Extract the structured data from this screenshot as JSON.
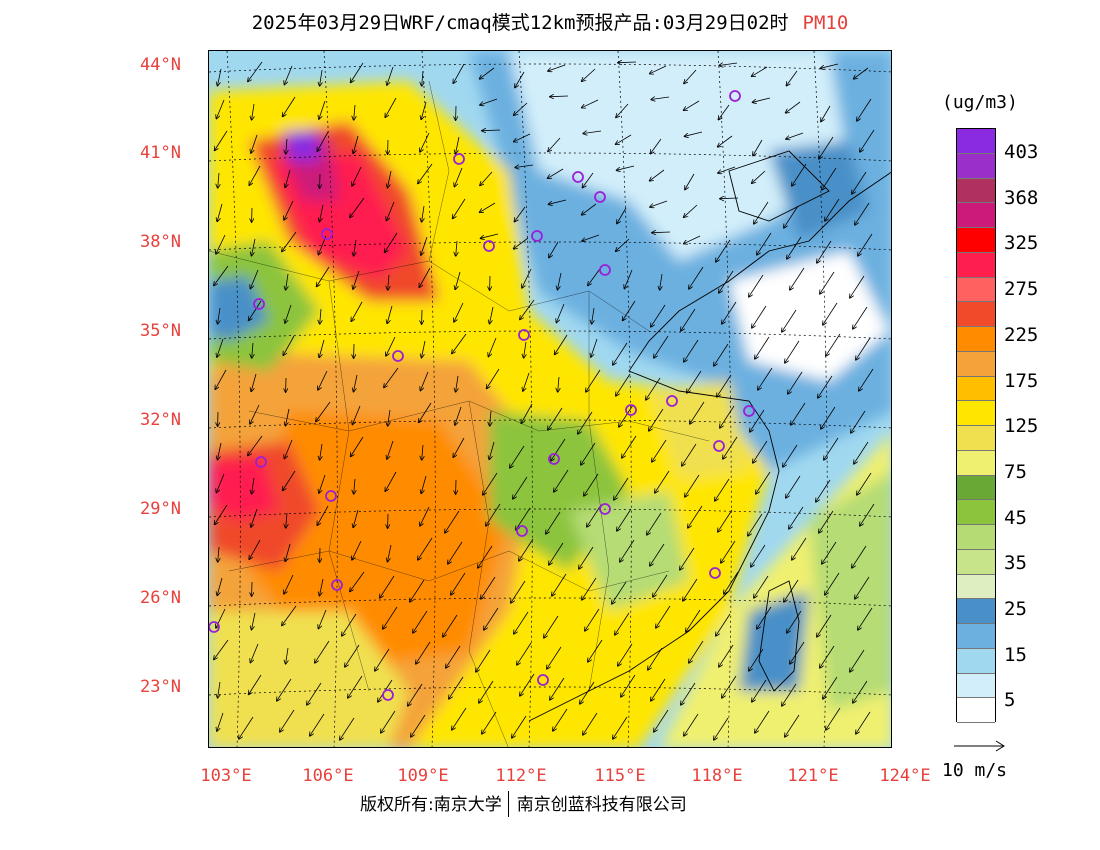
{
  "title": {
    "text": "2025年03月29日WRF/cmaq模式12km预报产品:03月29日02时",
    "variable": "PM10"
  },
  "map": {
    "lat_ticks": [
      "44°N",
      "41°N",
      "38°N",
      "35°N",
      "32°N",
      "29°N",
      "26°N",
      "23°N"
    ],
    "lon_ticks": [
      "103°E",
      "106°E",
      "109°E",
      "112°E",
      "115°E",
      "118°E",
      "121°E",
      "124°E"
    ],
    "station_marker_color": "#9b1fd8"
  },
  "legend": {
    "unit": "(ug/m3)",
    "colors": [
      "#8a2be2",
      "#9b30c8",
      "#b03060",
      "#cc1a7a",
      "#ff0000",
      "#ff1f4f",
      "#ff6060",
      "#f04a2a",
      "#ff8c00",
      "#f4a33a",
      "#ffbf00",
      "#ffe600",
      "#f0e050",
      "#f0f070",
      "#6aa836",
      "#8cc43c",
      "#b5dc74",
      "#c8e48a",
      "#dfeec0",
      "#4a90c8",
      "#6cb0e0",
      "#a0d8f0",
      "#d2eefa",
      "#ffffff"
    ],
    "labels": [
      "403",
      "368",
      "325",
      "275",
      "225",
      "175",
      "125",
      "75",
      "45",
      "35",
      "25",
      "15",
      "5"
    ]
  },
  "wind_reference": {
    "label": "10 m/s"
  },
  "credit": {
    "left": "版权所有:南京大学",
    "right": "南京创蓝科技有限公司"
  }
}
